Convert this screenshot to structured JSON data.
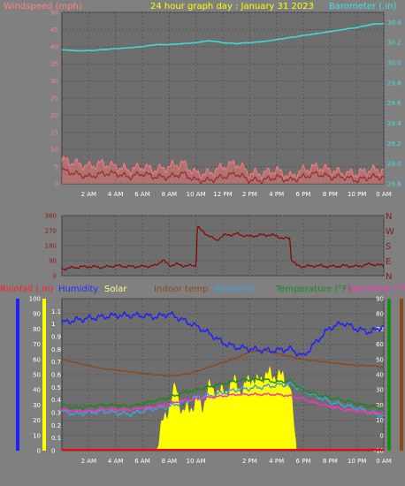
{
  "header": {
    "title": "24 hour graph day : January 31 2023",
    "left_label": "Windspeed (mph)",
    "right_label": "Barometer (.in)"
  },
  "panel2": {
    "compass": [
      "N",
      "W",
      "S",
      "E",
      "N"
    ]
  },
  "panel3": {
    "headers": [
      {
        "text": "Rainfall (.in)",
        "color": "#ff2020"
      },
      {
        "text": "Humidity",
        "color": "#2030ff"
      },
      {
        "text": "Solar",
        "color": "#ffff80"
      },
      {
        "text": "Indoor temp",
        "color": "#8b4a1a"
      },
      {
        "text": "Windchill",
        "color": "#3fa0e0"
      },
      {
        "text": "Temperature (°F)",
        "color": "#1a8a1a"
      },
      {
        "text": "Dew Point (°F)",
        "color": "#ff30c0"
      }
    ]
  },
  "colors": {
    "plot_bg": "#6e6e6e",
    "grid": "#555555",
    "wind_gust": "#ff7a7a",
    "wind_avg": "#9a2a2a",
    "barometer": "#40d8d8",
    "direction": "#8b0000",
    "humidity": "#2020ff",
    "solar": "#ffff00",
    "indoor_temp": "#8b4a1a",
    "windchill": "#3fa0e0",
    "temperature": "#1a8a1a",
    "dew_point": "#ff30c0",
    "rain": "#ff0000"
  },
  "chart_data": [
    {
      "type": "line",
      "title": "24 hour graph day : January 31 2023",
      "ylabel": "Windspeed (mph)",
      "y2label": "Barometer (.in)",
      "x_ticks": [
        "2 AM",
        "4 AM",
        "6 AM",
        "8 AM",
        "10 AM",
        "12 PM",
        "2 PM",
        "4 PM",
        "6 PM",
        "8 PM",
        "10 PM",
        "0 AM"
      ],
      "x_range_hours": [
        0,
        24
      ],
      "y_ticks": [
        0,
        5,
        10,
        15,
        20,
        25,
        30,
        35,
        40,
        45,
        50
      ],
      "ylim": [
        0,
        50
      ],
      "y2_ticks": [
        28.8,
        29.0,
        29.2,
        29.4,
        29.6,
        29.8,
        30.0,
        30.2,
        30.4
      ],
      "y2lim": [
        28.8,
        30.5
      ],
      "series": [
        {
          "name": "Barometer (.in)",
          "axis": "right",
          "x": [
            0,
            1,
            2,
            3,
            4,
            5,
            6,
            7,
            8,
            9,
            10,
            11,
            12,
            13,
            14,
            15,
            16,
            17,
            18,
            19,
            20,
            21,
            22,
            23,
            24
          ],
          "values": [
            30.13,
            30.12,
            30.12,
            30.13,
            30.14,
            30.15,
            30.16,
            30.18,
            30.18,
            30.19,
            30.2,
            30.22,
            30.2,
            30.19,
            30.2,
            30.21,
            30.23,
            30.25,
            30.27,
            30.29,
            30.31,
            30.33,
            30.35,
            30.38,
            30.39
          ]
        },
        {
          "name": "Windspeed (mph)",
          "axis": "left",
          "x": [
            0,
            1,
            2,
            3,
            4,
            5,
            6,
            7,
            8,
            9,
            10,
            11,
            12,
            13,
            14,
            15,
            16,
            17,
            18,
            19,
            20,
            21,
            22,
            23,
            24
          ],
          "values": [
            4,
            3,
            2,
            3,
            3,
            2,
            3,
            2,
            2,
            3,
            1,
            1,
            2,
            3,
            1,
            1,
            2,
            1,
            2,
            3,
            2,
            2,
            1,
            2,
            2
          ]
        },
        {
          "name": "Wind gust",
          "axis": "left",
          "x": [
            0,
            1,
            2,
            3,
            4,
            5,
            6,
            7,
            8,
            9,
            10,
            11,
            12,
            13,
            14,
            15,
            16,
            17,
            18,
            19,
            20,
            21,
            22,
            23,
            24
          ],
          "values": [
            7,
            6,
            5,
            6,
            5,
            4,
            5,
            4,
            5,
            6,
            3,
            3,
            5,
            6,
            3,
            3,
            4,
            2,
            4,
            5,
            4,
            3,
            3,
            4,
            4
          ]
        }
      ]
    },
    {
      "type": "line",
      "x_range_hours": [
        0,
        24
      ],
      "y_ticks": [
        0,
        90,
        180,
        270,
        360
      ],
      "ylim": [
        0,
        360
      ],
      "series": [
        {
          "name": "Wind direction",
          "x": [
            0,
            1,
            2,
            3,
            4,
            5,
            6,
            7,
            7.5,
            8,
            8.5,
            9,
            10,
            10.1,
            10.5,
            11,
            11.5,
            12,
            13,
            14,
            15,
            16,
            16.5,
            17,
            17.1,
            17.5,
            18,
            19,
            20,
            21,
            22,
            23,
            24
          ],
          "values": [
            40,
            50,
            55,
            50,
            60,
            55,
            55,
            60,
            95,
            60,
            70,
            60,
            60,
            300,
            260,
            240,
            210,
            240,
            250,
            235,
            245,
            240,
            220,
            230,
            100,
            60,
            55,
            60,
            55,
            60,
            55,
            70,
            60
          ]
        }
      ]
    },
    {
      "type": "line",
      "x_ticks": [
        "2 AM",
        "4 AM",
        "6 AM",
        "8 AM",
        "10 AM",
        "2 PM",
        "4 PM",
        "6 PM",
        "8 PM",
        "10 PM",
        "0 AM"
      ],
      "x_range_hours": [
        0,
        24
      ],
      "y_left_ticks": [
        0,
        10,
        20,
        30,
        40,
        50,
        60,
        70,
        80,
        90,
        100
      ],
      "y_left_inner_ticks": [
        0,
        0.1,
        0.2,
        0.3,
        0.4,
        0.5,
        0.6,
        0.7,
        0.8,
        0.9,
        1,
        1.1
      ],
      "y_right_ticks": [
        -10,
        0,
        10,
        20,
        30,
        40,
        50,
        60,
        70,
        80,
        90
      ],
      "ylim_left": [
        0,
        100
      ],
      "ylim_right": [
        -10,
        90
      ],
      "series": [
        {
          "name": "Humidity",
          "axis": "left",
          "x": [
            0,
            1,
            2,
            3,
            4,
            5,
            6,
            7,
            8,
            9,
            10,
            11,
            12,
            13,
            14,
            15,
            16,
            17,
            18,
            19,
            20,
            21,
            22,
            23,
            24
          ],
          "values": [
            84,
            86,
            87,
            88,
            89,
            89,
            89,
            88,
            90,
            86,
            82,
            77,
            71,
            68,
            67,
            66,
            66,
            67,
            62,
            72,
            81,
            84,
            80,
            78,
            82
          ]
        },
        {
          "name": "Solar",
          "axis": "left",
          "x": [
            0,
            6,
            7.0,
            7.5,
            8,
            8.5,
            9,
            9.5,
            10,
            10.5,
            11,
            11.5,
            12,
            12.5,
            13,
            13.5,
            14,
            14.5,
            15,
            15.5,
            16,
            16.5,
            17,
            17.5,
            18,
            24
          ],
          "values": [
            0,
            0,
            0,
            18,
            30,
            42,
            25,
            28,
            32,
            30,
            42,
            40,
            38,
            42,
            46,
            38,
            50,
            44,
            50,
            50,
            50,
            48,
            44,
            0,
            0,
            0
          ]
        },
        {
          "name": "Indoor temp",
          "axis": "right",
          "x": [
            0,
            1,
            2,
            3,
            4,
            5,
            6,
            7,
            8,
            9,
            10,
            11,
            12,
            13,
            14,
            15,
            16,
            17,
            18,
            19,
            20,
            21,
            22,
            23,
            24
          ],
          "values": [
            50,
            48,
            46,
            44,
            43,
            42,
            41,
            40,
            39,
            40,
            42,
            45,
            48,
            51,
            55,
            56,
            54,
            52,
            50,
            49,
            48,
            47,
            46,
            46,
            45
          ]
        },
        {
          "name": "Windchill",
          "axis": "right",
          "x": [
            0,
            1,
            2,
            3,
            4,
            5,
            6,
            7,
            8,
            9,
            10,
            11,
            12,
            13,
            14,
            15,
            16,
            17,
            18,
            19,
            20,
            21,
            22,
            23,
            24
          ],
          "values": [
            16,
            14,
            15,
            16,
            15,
            14,
            16,
            18,
            19,
            22,
            25,
            26,
            28,
            30,
            31,
            32,
            33,
            34,
            30,
            26,
            22,
            20,
            18,
            15,
            13
          ]
        },
        {
          "name": "Temperature (°F)",
          "axis": "right",
          "x": [
            0,
            1,
            2,
            3,
            4,
            5,
            6,
            7,
            8,
            9,
            10,
            11,
            12,
            13,
            14,
            15,
            16,
            17,
            18,
            19,
            20,
            21,
            22,
            23,
            24
          ],
          "values": [
            20,
            18,
            19,
            20,
            20,
            19,
            21,
            23,
            25,
            28,
            30,
            32,
            34,
            36,
            37,
            37,
            35,
            36,
            30,
            27,
            25,
            23,
            21,
            19,
            18
          ]
        },
        {
          "name": "Dew Point (°F)",
          "axis": "right",
          "x": [
            0,
            1,
            2,
            3,
            4,
            5,
            6,
            7,
            8,
            9,
            10,
            11,
            12,
            13,
            14,
            15,
            16,
            17,
            18,
            19,
            20,
            21,
            22,
            23,
            24
          ],
          "values": [
            17,
            16,
            16,
            17,
            17,
            17,
            18,
            19,
            21,
            23,
            24,
            25,
            26,
            27,
            27,
            27,
            27,
            26,
            24,
            21,
            19,
            17,
            16,
            15,
            15
          ]
        },
        {
          "name": "Rainfall (.in)",
          "axis": "left_inner",
          "x": [
            0,
            24
          ],
          "values": [
            0,
            0
          ]
        }
      ]
    }
  ]
}
